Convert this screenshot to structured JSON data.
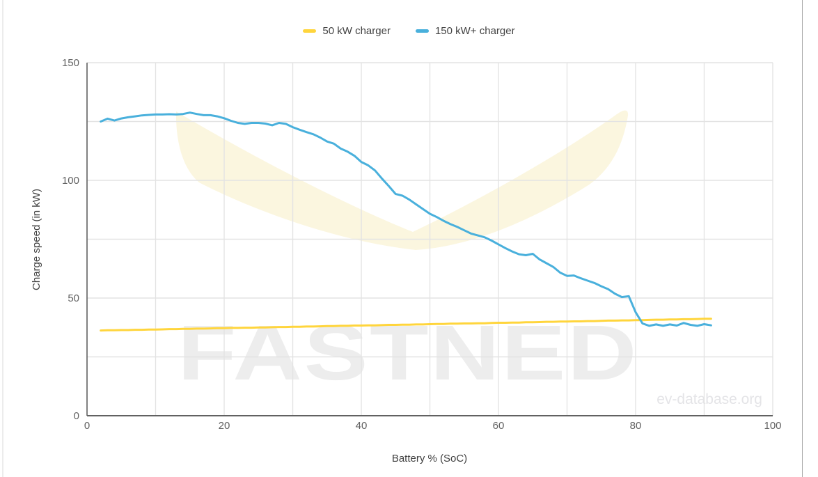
{
  "legend": {
    "items": [
      {
        "label": "50 kW charger"
      },
      {
        "label": "150 kW+ charger"
      }
    ]
  },
  "chart_data": {
    "type": "line",
    "title": "",
    "xlabel": "Battery % (SoC)",
    "ylabel": "Charge speed (in kW)",
    "xlim": [
      0,
      100
    ],
    "ylim": [
      0,
      150
    ],
    "x_ticks": [
      0,
      20,
      40,
      60,
      80,
      100
    ],
    "y_ticks": [
      0,
      50,
      100,
      150
    ],
    "x_grid_step": 10,
    "y_grid_step": 25,
    "grid": "on",
    "legend_position": "top-center",
    "series": [
      {
        "name": "50 kW charger",
        "color": "#FFD53C",
        "x": [
          2,
          3,
          4,
          5,
          6,
          7,
          8,
          9,
          10,
          11,
          12,
          13,
          14,
          15,
          16,
          17,
          18,
          19,
          20,
          21,
          22,
          23,
          24,
          25,
          26,
          27,
          28,
          29,
          30,
          31,
          32,
          33,
          34,
          35,
          36,
          37,
          38,
          39,
          40,
          41,
          42,
          43,
          44,
          45,
          46,
          47,
          48,
          49,
          50,
          51,
          52,
          53,
          54,
          55,
          56,
          57,
          58,
          59,
          60,
          61,
          62,
          63,
          64,
          65,
          66,
          67,
          68,
          69,
          70,
          71,
          72,
          73,
          74,
          75,
          76,
          77,
          78,
          79,
          80,
          81,
          82,
          83,
          84,
          85,
          86,
          87,
          88,
          89,
          90,
          91
        ],
        "values": [
          36.2,
          36.3,
          36.3,
          36.4,
          36.4,
          36.5,
          36.5,
          36.6,
          36.6,
          36.7,
          36.8,
          36.8,
          36.9,
          36.9,
          37.0,
          37.0,
          37.1,
          37.2,
          37.2,
          37.3,
          37.3,
          37.4,
          37.4,
          37.5,
          37.5,
          37.6,
          37.7,
          37.7,
          37.8,
          37.8,
          37.9,
          37.9,
          38.0,
          38.1,
          38.1,
          38.2,
          38.2,
          38.3,
          38.3,
          38.4,
          38.4,
          38.5,
          38.6,
          38.6,
          38.7,
          38.7,
          38.8,
          38.8,
          38.9,
          39.0,
          39.0,
          39.1,
          39.1,
          39.2,
          39.2,
          39.3,
          39.3,
          39.4,
          39.5,
          39.5,
          39.6,
          39.6,
          39.7,
          39.7,
          39.8,
          39.9,
          39.9,
          40.0,
          40.0,
          40.1,
          40.1,
          40.2,
          40.2,
          40.3,
          40.4,
          40.4,
          40.5,
          40.5,
          40.6,
          40.6,
          40.7,
          40.8,
          40.8,
          40.9,
          40.9,
          41.0,
          41.0,
          41.1,
          41.2,
          41.2
        ]
      },
      {
        "name": "150 kW+ charger",
        "color": "#49B0DC",
        "x": [
          2,
          3,
          4,
          5,
          6,
          7,
          8,
          9,
          10,
          11,
          12,
          13,
          14,
          15,
          16,
          17,
          18,
          19,
          20,
          21,
          22,
          23,
          24,
          25,
          26,
          27,
          28,
          29,
          30,
          31,
          32,
          33,
          34,
          35,
          36,
          37,
          38,
          39,
          40,
          41,
          42,
          43,
          44,
          45,
          46,
          47,
          48,
          49,
          50,
          51,
          52,
          53,
          54,
          55,
          56,
          57,
          58,
          59,
          60,
          61,
          62,
          63,
          64,
          65,
          66,
          67,
          68,
          69,
          70,
          71,
          72,
          73,
          74,
          75,
          76,
          77,
          78,
          79,
          80,
          81,
          82,
          83,
          84,
          85,
          86,
          87,
          88,
          89,
          90,
          91
        ],
        "values": [
          125.0,
          126.2,
          125.4,
          126.3,
          126.8,
          127.2,
          127.6,
          127.8,
          128.0,
          128.0,
          128.1,
          128.0,
          128.2,
          128.8,
          128.2,
          127.7,
          127.7,
          127.2,
          126.4,
          125.3,
          124.4,
          124.0,
          124.4,
          124.4,
          124.1,
          123.4,
          124.4,
          124.0,
          122.6,
          121.5,
          120.5,
          119.6,
          118.2,
          116.5,
          115.6,
          113.5,
          112.2,
          110.4,
          107.8,
          106.4,
          104.2,
          100.8,
          97.6,
          94.2,
          93.5,
          91.8,
          89.8,
          87.8,
          85.8,
          84.4,
          82.8,
          81.4,
          80.2,
          78.8,
          77.4,
          76.6,
          75.8,
          74.4,
          72.8,
          71.2,
          69.8,
          68.6,
          68.2,
          68.8,
          66.4,
          64.8,
          63.2,
          60.8,
          59.4,
          59.6,
          58.4,
          57.4,
          56.4,
          55.0,
          53.8,
          51.8,
          50.4,
          50.8,
          44.0,
          39.2,
          38.2,
          38.8,
          38.2,
          38.8,
          38.3,
          39.4,
          38.6,
          38.2,
          38.9,
          38.4
        ]
      }
    ],
    "watermarks": {
      "brand": "FASTNED",
      "site": "ev-database.org",
      "wing_color": "#FBF6DF",
      "brand_color": "#ededed",
      "site_color": "#e4e4e7"
    },
    "colors": {
      "axis_line": "#616161",
      "gridline": "#e3e3e3",
      "tick_label": "#616161",
      "axis_title": "#3f3f3f"
    }
  }
}
